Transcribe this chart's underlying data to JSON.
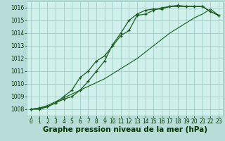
{
  "title": "Graphe pression niveau de la mer (hPa)",
  "x": [
    0,
    1,
    2,
    3,
    4,
    5,
    6,
    7,
    8,
    9,
    10,
    11,
    12,
    13,
    14,
    15,
    16,
    17,
    18,
    19,
    20,
    21,
    22,
    23
  ],
  "line1": [
    1008.0,
    1008.1,
    1008.2,
    1008.5,
    1008.8,
    1009.0,
    1009.5,
    1010.2,
    1011.0,
    1011.8,
    1013.1,
    1014.0,
    1015.0,
    1015.5,
    1015.8,
    1015.9,
    1015.9,
    1016.1,
    1016.2,
    1016.1,
    1016.1,
    1016.1,
    1015.7,
    1015.4
  ],
  "line2": [
    1008.0,
    1008.0,
    1008.2,
    1008.5,
    1009.0,
    1009.5,
    1010.5,
    1011.0,
    1011.8,
    1012.2,
    1013.0,
    1013.8,
    1014.2,
    1015.4,
    1015.5,
    1015.8,
    1016.0,
    1016.1,
    1016.1,
    1016.1,
    1016.1,
    1016.1,
    1015.7,
    1015.4
  ],
  "line3": [
    1008.0,
    1008.1,
    1008.3,
    1008.6,
    1008.9,
    1009.2,
    1009.5,
    1009.8,
    1010.1,
    1010.4,
    1010.8,
    1011.2,
    1011.6,
    1012.0,
    1012.5,
    1013.0,
    1013.5,
    1014.0,
    1014.4,
    1014.8,
    1015.2,
    1015.5,
    1015.9,
    1015.4
  ],
  "ylim": [
    1007.5,
    1016.5
  ],
  "yticks": [
    1008,
    1009,
    1010,
    1011,
    1012,
    1013,
    1014,
    1015,
    1016
  ],
  "xlim": [
    -0.5,
    23.5
  ],
  "xticks": [
    0,
    1,
    2,
    3,
    4,
    5,
    6,
    7,
    8,
    9,
    10,
    11,
    12,
    13,
    14,
    15,
    16,
    17,
    18,
    19,
    20,
    21,
    22,
    23
  ],
  "line_color": "#1a5c1a",
  "marker": "+",
  "bg_plot": "#cff0eb",
  "bg_fig": "#b8ddd8",
  "grid_color": "#99c4be",
  "title_color": "#003300",
  "tick_color": "#003300",
  "title_fontsize": 7.5,
  "tick_fontsize": 5.5
}
